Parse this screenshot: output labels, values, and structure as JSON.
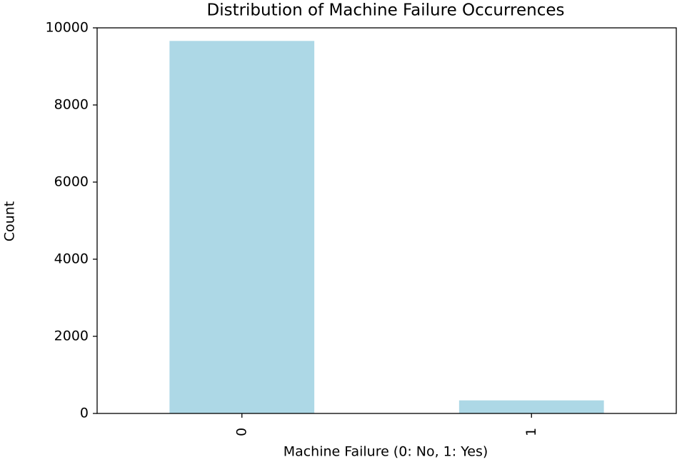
{
  "chart_data": {
    "type": "bar",
    "title": "Distribution of Machine Failure Occurrences",
    "x_label": "Machine Failure (0: No, 1: Yes)",
    "y_label": "Count",
    "categories": [
      "0",
      "1"
    ],
    "values": [
      9661,
      339
    ],
    "color": "#add8e6",
    "ylim": [
      0,
      10000
    ],
    "yticks": [
      0,
      2000,
      4000,
      6000,
      8000,
      10000
    ],
    "grid": false
  }
}
